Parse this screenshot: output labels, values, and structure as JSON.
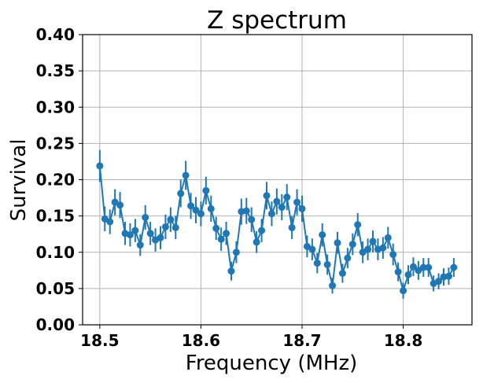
{
  "chart_data": {
    "type": "line",
    "title": "Z spectrum",
    "xlabel": "Frequency (MHz)",
    "ylabel": "Survival",
    "xlim": [
      18.483,
      18.868
    ],
    "ylim": [
      0.0,
      0.4
    ],
    "x_ticks": [
      18.5,
      18.6,
      18.7,
      18.8
    ],
    "x_tick_labels": [
      "18.5",
      "18.6",
      "18.7",
      "18.8"
    ],
    "y_ticks": [
      0.0,
      0.05,
      0.1,
      0.15,
      0.2,
      0.25,
      0.3,
      0.35,
      0.4
    ],
    "y_tick_labels": [
      "0.00",
      "0.05",
      "0.10",
      "0.15",
      "0.20",
      "0.25",
      "0.30",
      "0.35",
      "0.40"
    ],
    "grid": true,
    "legend": "none",
    "color": "#1f77b4",
    "markers": "circle",
    "error_bars": true,
    "series": [
      {
        "x": [
          18.5,
          18.505,
          18.51,
          18.515,
          18.52,
          18.525,
          18.53,
          18.535,
          18.54,
          18.545,
          18.55,
          18.555,
          18.56,
          18.565,
          18.57,
          18.575,
          18.58,
          18.585,
          18.59,
          18.595,
          18.6,
          18.605,
          18.61,
          18.615,
          18.62,
          18.625,
          18.63,
          18.635,
          18.64,
          18.645,
          18.65,
          18.655,
          18.66,
          18.665,
          18.67,
          18.675,
          18.68,
          18.685,
          18.69,
          18.695,
          18.7,
          18.705,
          18.71,
          18.715,
          18.72,
          18.725,
          18.73,
          18.735,
          18.74,
          18.745,
          18.75,
          18.755,
          18.76,
          18.765,
          18.77,
          18.775,
          18.78,
          18.785,
          18.79,
          18.795,
          18.8,
          18.805,
          18.81,
          18.815,
          18.82,
          18.825,
          18.83,
          18.835,
          18.84,
          18.845,
          18.85
        ],
        "y": [
          0.219,
          0.146,
          0.142,
          0.169,
          0.165,
          0.126,
          0.124,
          0.13,
          0.11,
          0.148,
          0.126,
          0.117,
          0.12,
          0.135,
          0.145,
          0.134,
          0.181,
          0.206,
          0.164,
          0.158,
          0.153,
          0.185,
          0.16,
          0.133,
          0.118,
          0.126,
          0.074,
          0.1,
          0.156,
          0.157,
          0.145,
          0.114,
          0.13,
          0.178,
          0.153,
          0.17,
          0.162,
          0.176,
          0.134,
          0.169,
          0.16,
          0.108,
          0.104,
          0.085,
          0.124,
          0.083,
          0.054,
          0.113,
          0.071,
          0.092,
          0.111,
          0.138,
          0.1,
          0.104,
          0.115,
          0.104,
          0.106,
          0.12,
          0.097,
          0.073,
          0.047,
          0.069,
          0.08,
          0.075,
          0.079,
          0.079,
          0.057,
          0.06,
          0.066,
          0.067,
          0.079
        ],
        "err": [
          0.022,
          0.017,
          0.017,
          0.018,
          0.018,
          0.016,
          0.016,
          0.016,
          0.015,
          0.017,
          0.016,
          0.016,
          0.016,
          0.017,
          0.017,
          0.016,
          0.019,
          0.02,
          0.018,
          0.018,
          0.017,
          0.019,
          0.018,
          0.016,
          0.016,
          0.016,
          0.013,
          0.015,
          0.018,
          0.018,
          0.017,
          0.015,
          0.016,
          0.019,
          0.017,
          0.018,
          0.018,
          0.018,
          0.016,
          0.018,
          0.018,
          0.015,
          0.015,
          0.014,
          0.016,
          0.014,
          0.011,
          0.015,
          0.013,
          0.014,
          0.015,
          0.016,
          0.015,
          0.015,
          0.015,
          0.015,
          0.015,
          0.015,
          0.015,
          0.013,
          0.011,
          0.013,
          0.013,
          0.013,
          0.013,
          0.013,
          0.011,
          0.011,
          0.012,
          0.012,
          0.013
        ]
      }
    ]
  }
}
